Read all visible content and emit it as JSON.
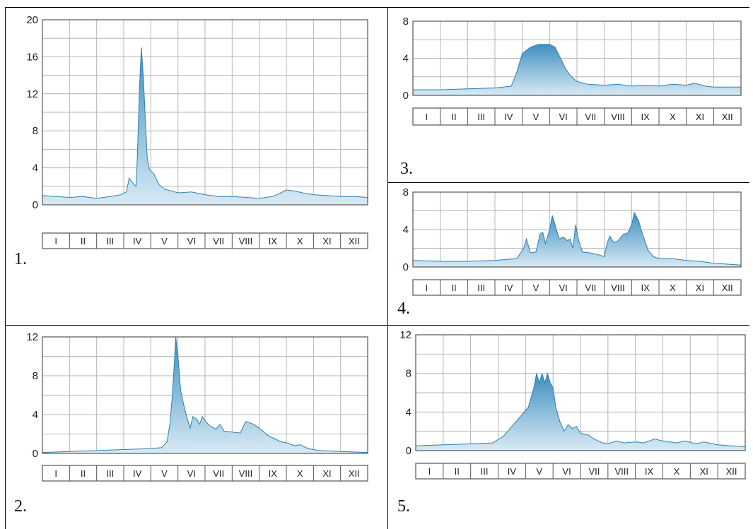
{
  "chart_data": [
    {
      "panel_label": "1.",
      "type": "area",
      "ylim": [
        0,
        20
      ],
      "yticks": [
        0,
        4,
        8,
        12,
        16,
        20
      ],
      "categories": [
        "I",
        "II",
        "III",
        "IV",
        "V",
        "VI",
        "VII",
        "VIII",
        "IX",
        "X",
        "XI",
        "XII"
      ],
      "series": [
        {
          "points": [
            [
              0,
              1.0
            ],
            [
              0.5,
              0.9
            ],
            [
              1,
              0.8
            ],
            [
              1.5,
              0.9
            ],
            [
              2,
              0.7
            ],
            [
              2.5,
              0.9
            ],
            [
              2.9,
              1.1
            ],
            [
              3.1,
              1.4
            ],
            [
              3.2,
              2.9
            ],
            [
              3.3,
              2.5
            ],
            [
              3.45,
              2.0
            ],
            [
              3.5,
              5.0
            ],
            [
              3.58,
              12.5
            ],
            [
              3.65,
              17.0
            ],
            [
              3.72,
              14.0
            ],
            [
              3.8,
              9.0
            ],
            [
              3.87,
              5.0
            ],
            [
              3.95,
              3.8
            ],
            [
              4.1,
              3.4
            ],
            [
              4.3,
              2.2
            ],
            [
              4.5,
              1.7
            ],
            [
              5,
              1.3
            ],
            [
              5.5,
              1.4
            ],
            [
              6,
              1.1
            ],
            [
              6.5,
              0.9
            ],
            [
              7,
              0.9
            ],
            [
              7.5,
              0.8
            ],
            [
              8,
              0.7
            ],
            [
              8.5,
              0.9
            ],
            [
              8.8,
              1.3
            ],
            [
              9,
              1.6
            ],
            [
              9.3,
              1.5
            ],
            [
              9.6,
              1.3
            ],
            [
              10,
              1.1
            ],
            [
              10.5,
              1.0
            ],
            [
              11,
              0.9
            ],
            [
              11.5,
              0.9
            ],
            [
              12,
              0.8
            ]
          ]
        }
      ]
    },
    {
      "panel_label": "2.",
      "type": "area",
      "ylim": [
        0,
        12
      ],
      "yticks": [
        0,
        4,
        8,
        12
      ],
      "categories": [
        "I",
        "II",
        "III",
        "IV",
        "V",
        "VI",
        "VII",
        "VIII",
        "IX",
        "X",
        "XI",
        "XII"
      ],
      "series": [
        {
          "points": [
            [
              0,
              0.1
            ],
            [
              1,
              0.2
            ],
            [
              2,
              0.3
            ],
            [
              3,
              0.4
            ],
            [
              4,
              0.5
            ],
            [
              4.4,
              0.6
            ],
            [
              4.6,
              1.2
            ],
            [
              4.7,
              3.0
            ],
            [
              4.78,
              5.5
            ],
            [
              4.85,
              8.5
            ],
            [
              4.92,
              12.0
            ],
            [
              5.0,
              10.0
            ],
            [
              5.1,
              6.5
            ],
            [
              5.2,
              5.2
            ],
            [
              5.3,
              4.0
            ],
            [
              5.45,
              2.6
            ],
            [
              5.55,
              3.8
            ],
            [
              5.7,
              3.5
            ],
            [
              5.8,
              3.0
            ],
            [
              5.9,
              3.8
            ],
            [
              6.05,
              3.2
            ],
            [
              6.2,
              2.8
            ],
            [
              6.4,
              2.5
            ],
            [
              6.55,
              3.0
            ],
            [
              6.7,
              2.3
            ],
            [
              7,
              2.2
            ],
            [
              7.3,
              2.1
            ],
            [
              7.5,
              3.3
            ],
            [
              7.8,
              3.0
            ],
            [
              8,
              2.6
            ],
            [
              8.3,
              1.9
            ],
            [
              8.5,
              1.6
            ],
            [
              8.8,
              1.2
            ],
            [
              9,
              1.1
            ],
            [
              9.3,
              0.8
            ],
            [
              9.5,
              0.9
            ],
            [
              9.8,
              0.5
            ],
            [
              10.2,
              0.3
            ],
            [
              11,
              0.2
            ],
            [
              12,
              0.1
            ]
          ]
        }
      ]
    },
    {
      "panel_label": "3.",
      "type": "area",
      "ylim": [
        0,
        8
      ],
      "yticks": [
        0,
        4,
        8
      ],
      "categories": [
        "I",
        "II",
        "III",
        "IV",
        "V",
        "VI",
        "VII",
        "VIII",
        "IX",
        "X",
        "XI",
        "XII"
      ],
      "series": [
        {
          "points": [
            [
              0,
              0.6
            ],
            [
              1,
              0.6
            ],
            [
              2,
              0.7
            ],
            [
              3,
              0.8
            ],
            [
              3.6,
              1.0
            ],
            [
              3.8,
              2.5
            ],
            [
              4.0,
              4.5
            ],
            [
              4.3,
              5.2
            ],
            [
              4.6,
              5.5
            ],
            [
              5.0,
              5.5
            ],
            [
              5.2,
              5.2
            ],
            [
              5.4,
              4.0
            ],
            [
              5.6,
              2.8
            ],
            [
              5.8,
              2.0
            ],
            [
              6.0,
              1.5
            ],
            [
              6.4,
              1.2
            ],
            [
              7,
              1.1
            ],
            [
              7.5,
              1.2
            ],
            [
              8,
              1.0
            ],
            [
              8.5,
              1.1
            ],
            [
              9,
              1.0
            ],
            [
              9.5,
              1.2
            ],
            [
              10,
              1.1
            ],
            [
              10.3,
              1.3
            ],
            [
              10.7,
              1.0
            ],
            [
              11,
              0.9
            ],
            [
              11.5,
              0.9
            ],
            [
              12,
              0.9
            ]
          ]
        }
      ]
    },
    {
      "panel_label": "4.",
      "type": "area",
      "ylim": [
        0,
        8
      ],
      "yticks": [
        0,
        4,
        8
      ],
      "categories": [
        "I",
        "II",
        "III",
        "IV",
        "V",
        "VI",
        "VII",
        "VIII",
        "IX",
        "X",
        "XI",
        "XII"
      ],
      "series": [
        {
          "points": [
            [
              0,
              0.7
            ],
            [
              1,
              0.6
            ],
            [
              2,
              0.6
            ],
            [
              3,
              0.7
            ],
            [
              3.8,
              0.9
            ],
            [
              4.05,
              2.0
            ],
            [
              4.15,
              3.0
            ],
            [
              4.3,
              1.5
            ],
            [
              4.5,
              1.6
            ],
            [
              4.65,
              3.5
            ],
            [
              4.75,
              3.7
            ],
            [
              4.85,
              2.5
            ],
            [
              5.0,
              4.0
            ],
            [
              5.1,
              5.5
            ],
            [
              5.2,
              4.5
            ],
            [
              5.35,
              3.0
            ],
            [
              5.5,
              3.2
            ],
            [
              5.65,
              2.8
            ],
            [
              5.75,
              3.0
            ],
            [
              5.85,
              2.0
            ],
            [
              5.95,
              4.5
            ],
            [
              6.05,
              3.0
            ],
            [
              6.2,
              1.6
            ],
            [
              6.5,
              1.5
            ],
            [
              6.8,
              1.3
            ],
            [
              7.0,
              1.1
            ],
            [
              7.1,
              2.5
            ],
            [
              7.2,
              3.3
            ],
            [
              7.35,
              2.6
            ],
            [
              7.5,
              2.8
            ],
            [
              7.7,
              3.5
            ],
            [
              7.85,
              3.6
            ],
            [
              8.0,
              4.5
            ],
            [
              8.1,
              5.8
            ],
            [
              8.25,
              5.0
            ],
            [
              8.4,
              3.5
            ],
            [
              8.6,
              1.8
            ],
            [
              8.8,
              1.1
            ],
            [
              9,
              0.9
            ],
            [
              9.5,
              0.9
            ],
            [
              10,
              0.7
            ],
            [
              10.5,
              0.6
            ],
            [
              11,
              0.4
            ],
            [
              11.5,
              0.3
            ],
            [
              12,
              0.2
            ]
          ]
        }
      ]
    },
    {
      "panel_label": "5.",
      "type": "area",
      "ylim": [
        0,
        12
      ],
      "yticks": [
        0,
        4,
        8,
        12
      ],
      "categories": [
        "I",
        "II",
        "III",
        "IV",
        "V",
        "VI",
        "VII",
        "VIII",
        "IX",
        "X",
        "XI",
        "XII"
      ],
      "series": [
        {
          "points": [
            [
              0,
              0.5
            ],
            [
              1,
              0.6
            ],
            [
              2,
              0.7
            ],
            [
              2.8,
              0.8
            ],
            [
              3.2,
              1.5
            ],
            [
              3.5,
              2.5
            ],
            [
              3.8,
              3.5
            ],
            [
              4.1,
              4.5
            ],
            [
              4.3,
              6.5
            ],
            [
              4.4,
              8.0
            ],
            [
              4.5,
              7.0
            ],
            [
              4.6,
              8.0
            ],
            [
              4.7,
              7.0
            ],
            [
              4.8,
              8.0
            ],
            [
              4.9,
              7.0
            ],
            [
              5.0,
              6.5
            ],
            [
              5.1,
              4.5
            ],
            [
              5.25,
              3.0
            ],
            [
              5.4,
              2.0
            ],
            [
              5.55,
              2.7
            ],
            [
              5.7,
              2.3
            ],
            [
              5.85,
              2.5
            ],
            [
              6.0,
              1.8
            ],
            [
              6.3,
              1.6
            ],
            [
              6.5,
              1.2
            ],
            [
              6.8,
              0.8
            ],
            [
              7,
              0.7
            ],
            [
              7.3,
              1.0
            ],
            [
              7.6,
              0.8
            ],
            [
              8,
              0.9
            ],
            [
              8.3,
              0.8
            ],
            [
              8.7,
              1.2
            ],
            [
              9,
              1.0
            ],
            [
              9.5,
              0.8
            ],
            [
              9.8,
              1.0
            ],
            [
              10.2,
              0.7
            ],
            [
              10.5,
              0.9
            ],
            [
              11,
              0.6
            ],
            [
              11.5,
              0.5
            ],
            [
              12,
              0.4
            ]
          ]
        }
      ]
    }
  ]
}
